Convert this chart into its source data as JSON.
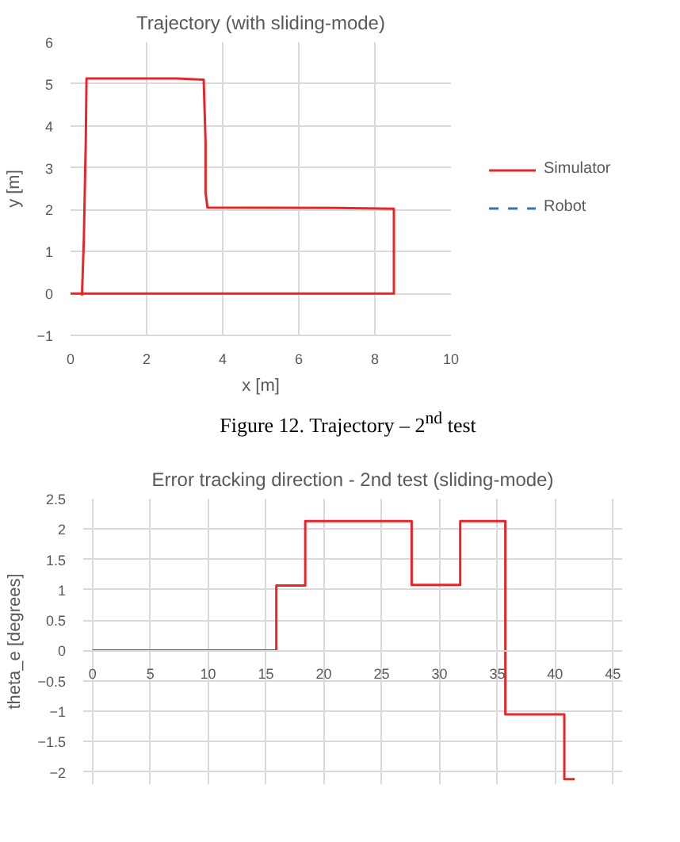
{
  "chart_data": [
    {
      "type": "line",
      "title": "Trajectory (with sliding-mode)",
      "xlabel": "x [m]",
      "ylabel": "y [m]",
      "x": [
        0.3,
        0.35,
        0.4,
        0.42,
        2.8,
        3.5,
        3.55,
        3.55,
        3.6,
        7.0,
        8.5,
        8.5,
        0.0
      ],
      "series": [
        {
          "name": "Simulator",
          "color": "#e8262a",
          "line_style": "solid",
          "values": [
            -0.05,
            1.3,
            3.6,
            5.13,
            5.13,
            5.1,
            3.6,
            2.4,
            2.05,
            2.04,
            2.02,
            0.0,
            0.0
          ]
        },
        {
          "name": "Robot",
          "color": "#2e75b6",
          "line_style": "dashed",
          "values": [
            null,
            null,
            null,
            null,
            null,
            null,
            null,
            null,
            null,
            null,
            null,
            null,
            null
          ]
        }
      ],
      "xlim": [
        0,
        10
      ],
      "xticks": [
        0,
        2,
        4,
        6,
        8,
        10
      ],
      "ylim": [
        -1,
        6
      ],
      "yticks": [
        -1,
        0,
        1,
        2,
        3,
        4,
        5,
        6
      ],
      "grid": true,
      "legend": "right",
      "annotations": [
        "Figure 12. Trajectory – 2$^{nd}$ test"
      ]
    },
    {
      "type": "step",
      "title": "Error tracking direction - 2nd test (sliding-mode)",
      "ylabel": "theta_e [degrees]",
      "x": [
        0,
        15.9,
        18.4,
        27.6,
        31.8,
        35.7,
        40.8,
        41.7
      ],
      "series": [
        {
          "color": "#e8262a",
          "values": [
            0,
            1.07,
            2.13,
            1.08,
            2.13,
            -1.05,
            -2.12,
            -2.12
          ]
        }
      ],
      "xlim": [
        -0.8,
        45.8
      ],
      "xticks": [
        0,
        5,
        10,
        15,
        20,
        25,
        30,
        35,
        40,
        45
      ],
      "ylim": [
        -2.2,
        2.5
      ],
      "yticks": [
        -2,
        -1.5,
        -1,
        -0.5,
        0,
        0.5,
        1,
        1.5,
        2,
        2.5
      ],
      "grid": true
    }
  ]
}
